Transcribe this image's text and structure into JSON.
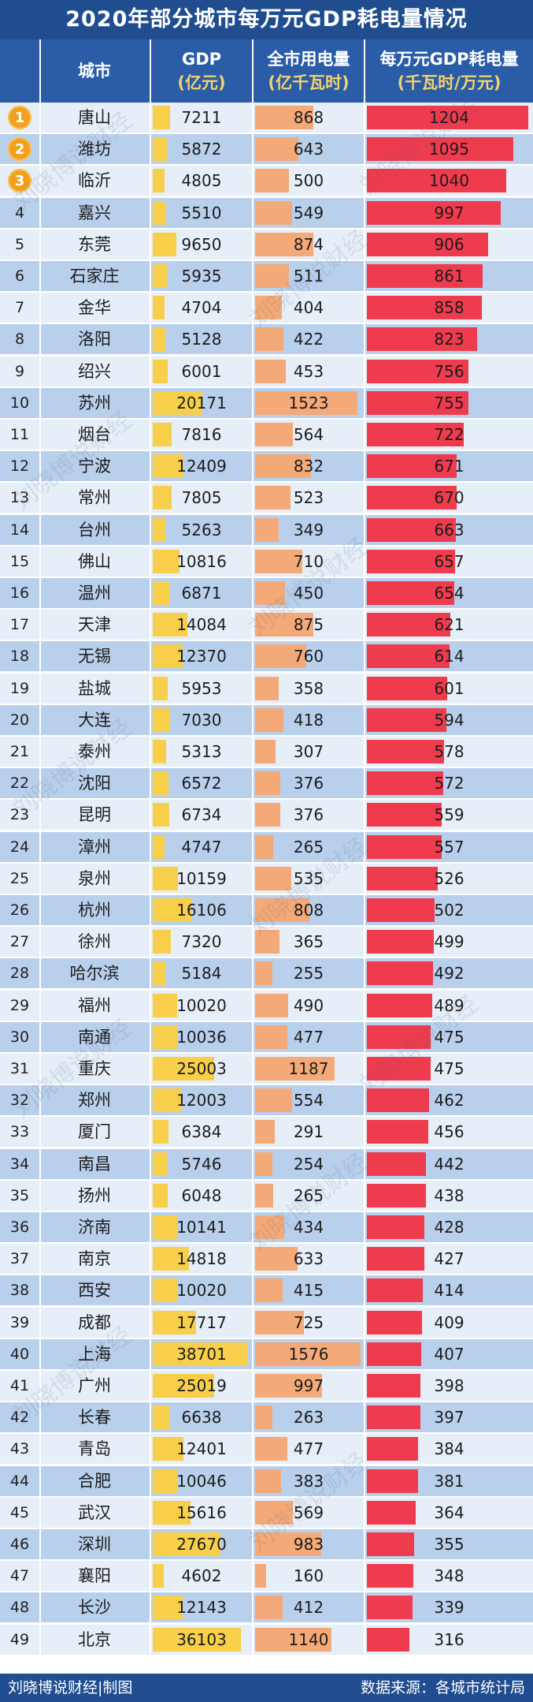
{
  "title": "2020年部分城市每万元GDP耗电量情况",
  "header": {
    "city": "城市",
    "gdp_line1": "GDP",
    "gdp_line2": "(亿元)",
    "power_line1": "全市用电量",
    "power_line2": "(亿千瓦时)",
    "intensity_line1": "每万元GDP耗电量",
    "intensity_line2": "(千瓦时/万元)"
  },
  "colors": {
    "title_bg": "#1f4d8f",
    "header_bg": "#2a5ca8",
    "gdp_bar": "#f7cf4a",
    "power_bar": "#f4a978",
    "intensity_bar": "#ef3b4e",
    "row_light": "#e6eef8",
    "row_dark": "#b9d0ec",
    "medal": "#f2a01e"
  },
  "footer": {
    "left": "刘晓博说财经|制图",
    "right": "数据来源：各城市统计局"
  },
  "watermark_text": "刘晓博说财经",
  "chart_data": {
    "type": "table",
    "title": "2020年部分城市每万元GDP耗电量情况",
    "columns": [
      "城市",
      "GDP(亿元)",
      "全市用电量(亿千瓦时)",
      "每万元GDP耗电量(千瓦时/万元)"
    ],
    "ranks": [
      1,
      2,
      3,
      4,
      5,
      6,
      7,
      8,
      9,
      10,
      11,
      12,
      13,
      14,
      15,
      16,
      17,
      18,
      19,
      20,
      21,
      22,
      23,
      24,
      25,
      26,
      27,
      28,
      29,
      30,
      31,
      32,
      33,
      34,
      35,
      36,
      37,
      38,
      39,
      40,
      41,
      42,
      43,
      44,
      45,
      46,
      47,
      48,
      49
    ],
    "cities": [
      "唐山",
      "潍坊",
      "临沂",
      "嘉兴",
      "东莞",
      "石家庄",
      "金华",
      "洛阳",
      "绍兴",
      "苏州",
      "烟台",
      "宁波",
      "常州",
      "台州",
      "佛山",
      "温州",
      "天津",
      "无锡",
      "盐城",
      "大连",
      "泰州",
      "沈阳",
      "昆明",
      "漳州",
      "泉州",
      "杭州",
      "徐州",
      "哈尔滨",
      "福州",
      "南通",
      "重庆",
      "郑州",
      "厦门",
      "南昌",
      "扬州",
      "济南",
      "南京",
      "西安",
      "成都",
      "上海",
      "广州",
      "长春",
      "青岛",
      "合肥",
      "武汉",
      "深圳",
      "襄阳",
      "长沙",
      "北京"
    ],
    "gdp": [
      7211,
      5872,
      4805,
      5510,
      9650,
      5935,
      4704,
      5128,
      6001,
      20171,
      7816,
      12409,
      7805,
      5263,
      10816,
      6871,
      14084,
      12370,
      5953,
      7030,
      5313,
      6572,
      6734,
      4747,
      10159,
      16106,
      7320,
      5184,
      10020,
      10036,
      25003,
      12003,
      6384,
      5746,
      6048,
      10141,
      14818,
      10020,
      17717,
      38701,
      25019,
      6638,
      12401,
      10046,
      15616,
      27670,
      4602,
      12143,
      36103
    ],
    "power": [
      868,
      643,
      500,
      549,
      874,
      511,
      404,
      422,
      453,
      1523,
      564,
      832,
      523,
      349,
      710,
      450,
      875,
      760,
      358,
      418,
      307,
      376,
      376,
      265,
      535,
      808,
      365,
      255,
      490,
      477,
      1187,
      554,
      291,
      254,
      265,
      434,
      633,
      415,
      725,
      1576,
      997,
      263,
      477,
      383,
      569,
      983,
      160,
      412,
      1140
    ],
    "intensity": [
      1204,
      1095,
      1040,
      997,
      906,
      861,
      858,
      823,
      756,
      755,
      722,
      671,
      670,
      663,
      657,
      654,
      621,
      614,
      601,
      594,
      578,
      572,
      559,
      557,
      526,
      502,
      499,
      492,
      489,
      475,
      475,
      462,
      456,
      442,
      438,
      428,
      427,
      414,
      409,
      407,
      398,
      397,
      384,
      381,
      364,
      355,
      348,
      339,
      316
    ],
    "gdp_max": 38701,
    "power_max": 1576,
    "intensity_max": 1204
  }
}
